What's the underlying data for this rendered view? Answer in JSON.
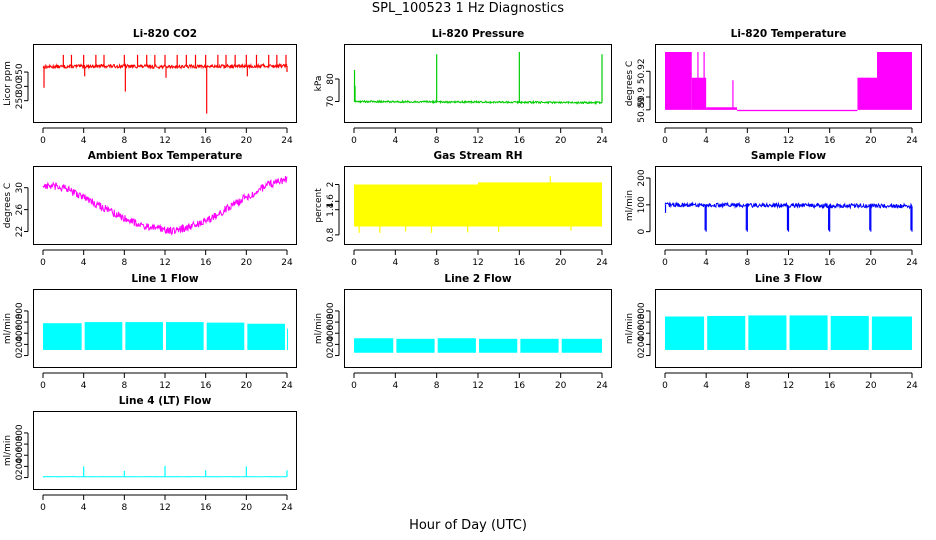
{
  "figure": {
    "title": "SPL_100523  1 Hz Diagnostics",
    "xlabel": "Hour of Day (UTC)"
  },
  "colors": {
    "co2": "#ff0000",
    "pressure": "#00cc00",
    "temperature": "#ff00ff",
    "ambient": "#ff00ff",
    "rh": "#ffff00",
    "sample_flow": "#0000ff",
    "line_flow": "#00ffff"
  },
  "chart_data": [
    {
      "id": "co2",
      "type": "line",
      "title": "Li-820 CO2",
      "ylabel": "Licor ppm",
      "color": "#ff0000",
      "xlim": [
        0,
        24
      ],
      "ylim": [
        200,
        420
      ],
      "xticks": [
        0,
        4,
        8,
        12,
        16,
        20,
        24
      ],
      "yticks": [
        250,
        300,
        350
      ],
      "baseline": [
        [
          0,
          368
        ],
        [
          6,
          371
        ],
        [
          12,
          369
        ],
        [
          18,
          370
        ],
        [
          24,
          372
        ]
      ],
      "noise": 6,
      "spikes": [
        [
          0.1,
          295
        ],
        [
          2,
          410
        ],
        [
          2.8,
          410
        ],
        [
          4,
          410
        ],
        [
          4.1,
          335
        ],
        [
          5.2,
          410
        ],
        [
          6,
          410
        ],
        [
          8,
          410
        ],
        [
          8.1,
          282
        ],
        [
          9.3,
          410
        ],
        [
          10.2,
          410
        ],
        [
          11,
          410
        ],
        [
          12,
          410
        ],
        [
          12.1,
          330
        ],
        [
          13.2,
          410
        ],
        [
          14.1,
          410
        ],
        [
          15,
          410
        ],
        [
          16,
          410
        ],
        [
          16.1,
          205
        ],
        [
          17.2,
          410
        ],
        [
          18,
          410
        ],
        [
          18.9,
          410
        ],
        [
          20,
          410
        ],
        [
          20.1,
          335
        ],
        [
          21,
          410
        ],
        [
          22.2,
          410
        ],
        [
          23,
          410
        ],
        [
          23.9,
          410
        ],
        [
          24,
          350
        ]
      ]
    },
    {
      "id": "pressure",
      "type": "line",
      "title": "Li-820 Pressure",
      "ylabel": "kPa",
      "color": "#00cc00",
      "xlim": [
        0,
        24
      ],
      "ylim": [
        64,
        92
      ],
      "xticks": [
        0,
        4,
        8,
        12,
        16,
        20,
        24
      ],
      "yticks": [
        70,
        80
      ],
      "baseline": [
        [
          0,
          70
        ],
        [
          24,
          69.5
        ]
      ],
      "noise": 0.4,
      "spikes": [
        [
          0.05,
          84
        ],
        [
          0.1,
          77
        ],
        [
          8,
          91
        ],
        [
          16,
          92
        ],
        [
          24,
          91
        ]
      ]
    },
    {
      "id": "temperature",
      "type": "band",
      "title": "Li-820 Temperature",
      "ylabel": "degrees C",
      "color": "#ff00ff",
      "xlim": [
        0,
        24
      ],
      "ylim": [
        50.886,
        50.935
      ],
      "xticks": [
        0,
        4,
        8,
        12,
        16,
        20,
        24
      ],
      "yticks": [
        50.89,
        50.9,
        50.92
      ],
      "segments": [
        [
          0,
          2.6,
          50.89,
          50.935
        ],
        [
          2.6,
          4,
          50.89,
          50.915
        ],
        [
          4,
          7,
          50.89,
          50.892
        ],
        [
          7,
          18.7,
          50.889,
          50.89
        ],
        [
          18.7,
          20.6,
          50.89,
          50.915
        ],
        [
          20.6,
          24,
          50.89,
          50.935
        ]
      ],
      "spikes": [
        [
          3.2,
          50.935
        ],
        [
          3.8,
          50.935
        ],
        [
          6.6,
          50.913
        ],
        [
          19.2,
          50.915
        ],
        [
          19.7,
          50.915
        ]
      ]
    },
    {
      "id": "ambient",
      "type": "line",
      "title": "Ambient Box Temperature",
      "ylabel": "degrees C",
      "color": "#ff00ff",
      "xlim": [
        0,
        24
      ],
      "ylim": [
        21,
        32.5
      ],
      "xticks": [
        0,
        4,
        8,
        12,
        16,
        20,
        24
      ],
      "yticks": [
        22,
        26,
        30
      ],
      "baseline": [
        [
          0,
          30.4
        ],
        [
          2,
          30
        ],
        [
          4,
          28.3
        ],
        [
          7,
          25.3
        ],
        [
          10,
          22.9
        ],
        [
          13,
          22.1
        ],
        [
          16,
          23.8
        ],
        [
          19,
          27.2
        ],
        [
          22,
          30.4
        ],
        [
          24,
          31.6
        ]
      ],
      "noise": 0.7,
      "spikes": []
    },
    {
      "id": "rh",
      "type": "band",
      "title": "Gas Stream RH",
      "ylabel": "percent",
      "color": "#ffff00",
      "xlim": [
        0,
        24
      ],
      "ylim": [
        0.75,
        2.25
      ],
      "xticks": [
        0,
        4,
        8,
        12,
        16,
        20,
        24
      ],
      "yticks": [
        0.8,
        1.4,
        1.6,
        2.0
      ],
      "segments": [
        [
          0,
          12,
          1.0,
          2.0
        ],
        [
          12,
          24,
          1.0,
          2.05
        ]
      ],
      "spikes": [
        [
          0.5,
          0.85
        ],
        [
          2.5,
          0.85
        ],
        [
          5,
          0.88
        ],
        [
          7.5,
          0.85
        ],
        [
          11,
          0.86
        ],
        [
          14,
          0.87
        ],
        [
          19,
          2.2
        ],
        [
          21,
          0.9
        ]
      ]
    },
    {
      "id": "sample_flow",
      "type": "line",
      "title": "Sample Flow",
      "ylabel": "ml/min",
      "color": "#0000ff",
      "xlim": [
        0,
        24
      ],
      "ylim": [
        -20,
        215
      ],
      "xticks": [
        0,
        4,
        8,
        12,
        16,
        20,
        24
      ],
      "yticks": [
        0,
        100,
        200
      ],
      "baseline": [
        [
          0,
          100
        ],
        [
          24,
          95
        ]
      ],
      "noise": 8,
      "spikes": [
        [
          0.05,
          70
        ],
        [
          3.9,
          5
        ],
        [
          4,
          0
        ],
        [
          7.9,
          5
        ],
        [
          8,
          0
        ],
        [
          11.9,
          5
        ],
        [
          12,
          0
        ],
        [
          15.9,
          5
        ],
        [
          16,
          0
        ],
        [
          19.9,
          5
        ],
        [
          20,
          0
        ],
        [
          23.9,
          5
        ],
        [
          24,
          0
        ]
      ]
    },
    {
      "id": "line1",
      "type": "band",
      "title": "Line 1 Flow",
      "ylabel": "ml/min",
      "color": "#00ffff",
      "xlim": [
        0,
        24
      ],
      "ylim": [
        -80,
        1050
      ],
      "xticks": [
        0,
        4,
        8,
        12,
        16,
        20,
        24
      ],
      "yticks": [
        0,
        200,
        400,
        600,
        800
      ],
      "segments": [
        [
          0,
          3.8,
          100,
          580
        ],
        [
          4.1,
          7.8,
          100,
          600
        ],
        [
          8.1,
          11.8,
          100,
          600
        ],
        [
          12.1,
          15.8,
          100,
          600
        ],
        [
          16.1,
          19.8,
          100,
          590
        ],
        [
          20.1,
          23.8,
          100,
          570
        ],
        [
          24,
          24.1,
          100,
          480
        ]
      ],
      "spikes": []
    },
    {
      "id": "line2",
      "type": "band",
      "title": "Line 2 Flow",
      "ylabel": "ml/min",
      "color": "#00ffff",
      "xlim": [
        0,
        24
      ],
      "ylim": [
        -80,
        1050
      ],
      "xticks": [
        0,
        4,
        8,
        12,
        16,
        20,
        24
      ],
      "yticks": [
        0,
        200,
        400,
        600,
        800
      ],
      "segments": [
        [
          0,
          3.8,
          50,
          310
        ],
        [
          4.1,
          7.8,
          50,
          300
        ],
        [
          8.1,
          11.8,
          50,
          310
        ],
        [
          12.1,
          15.8,
          50,
          300
        ],
        [
          16.1,
          19.8,
          50,
          300
        ],
        [
          20.1,
          24,
          50,
          300
        ]
      ],
      "spikes": []
    },
    {
      "id": "line3",
      "type": "band",
      "title": "Line 3 Flow",
      "ylabel": "ml/min",
      "color": "#00ffff",
      "xlim": [
        0,
        24
      ],
      "ylim": [
        -80,
        1050
      ],
      "xticks": [
        0,
        4,
        8,
        12,
        16,
        20,
        24
      ],
      "yticks": [
        0,
        200,
        400,
        600,
        800
      ],
      "segments": [
        [
          0,
          3.8,
          100,
          700
        ],
        [
          4.1,
          7.8,
          100,
          710
        ],
        [
          8.1,
          11.8,
          100,
          720
        ],
        [
          12.1,
          15.8,
          100,
          720
        ],
        [
          16.1,
          19.8,
          100,
          710
        ],
        [
          20.1,
          24,
          100,
          700
        ]
      ],
      "spikes": [
        [
          1.5,
          550
        ],
        [
          3,
          550
        ],
        [
          5.5,
          530
        ],
        [
          9.5,
          560
        ],
        [
          13.5,
          540
        ],
        [
          17.5,
          560
        ],
        [
          21.5,
          550
        ]
      ]
    },
    {
      "id": "line4",
      "type": "line",
      "title": "Line 4 (LT) Flow",
      "ylabel": "ml/min",
      "color": "#00ffff",
      "xlim": [
        0,
        24
      ],
      "ylim": [
        -80,
        1050
      ],
      "xticks": [
        0,
        4,
        8,
        12,
        16,
        20,
        24
      ],
      "yticks": [
        0,
        200,
        400,
        600,
        800
      ],
      "baseline": [
        [
          0,
          15
        ],
        [
          24,
          15
        ]
      ],
      "noise": 3,
      "spikes": [
        [
          4,
          200
        ],
        [
          8,
          120
        ],
        [
          12,
          210
        ],
        [
          16,
          130
        ],
        [
          20,
          200
        ],
        [
          24,
          130
        ]
      ]
    }
  ]
}
